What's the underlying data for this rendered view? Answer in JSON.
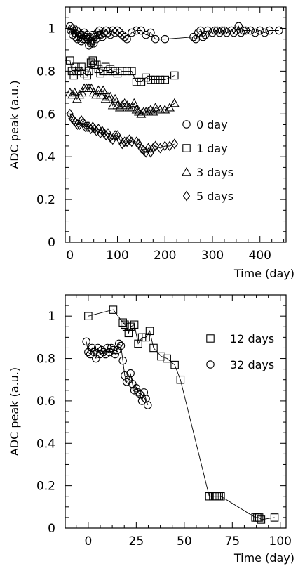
{
  "chart_data": [
    {
      "type": "scatter",
      "title": "",
      "xlabel": "Time  (day)",
      "ylabel": "ADC peak (a.u.)",
      "xlim": [
        -10,
        455
      ],
      "ylim": [
        0,
        1.1
      ],
      "xticks": [
        0,
        100,
        200,
        300,
        400
      ],
      "yticks": [
        0,
        0.2,
        0.4,
        0.6,
        0.8,
        1
      ],
      "ytick_labels": [
        "0",
        "0.2",
        "0.4",
        "0.6",
        "0.8",
        "1"
      ],
      "grid": false,
      "legend_position": "right-middle",
      "series": [
        {
          "name": "0 day",
          "marker": "circle",
          "connected": true,
          "x": [
            0,
            2,
            4,
            6,
            8,
            10,
            12,
            14,
            16,
            18,
            20,
            22,
            24,
            26,
            28,
            30,
            32,
            34,
            36,
            38,
            40,
            42,
            44,
            46,
            48,
            50,
            52,
            55,
            58,
            60,
            62,
            65,
            68,
            72,
            76,
            80,
            85,
            90,
            95,
            100,
            105,
            110,
            115,
            120,
            130,
            140,
            150,
            160,
            170,
            180,
            200,
            260,
            265,
            270,
            275,
            280,
            285,
            290,
            300,
            305,
            310,
            315,
            320,
            325,
            330,
            340,
            345,
            350,
            355,
            360,
            365,
            370,
            380,
            390,
            400,
            410,
            420,
            440
          ],
          "y": [
            1.01,
            0.99,
            1.0,
            0.97,
            1.0,
            0.98,
            0.96,
            0.99,
            0.95,
            0.98,
            0.96,
            0.97,
            0.94,
            0.97,
            0.95,
            0.98,
            0.95,
            0.96,
            0.97,
            0.95,
            0.92,
            0.96,
            0.93,
            0.94,
            0.97,
            0.93,
            0.96,
            0.95,
            0.98,
            0.97,
            0.99,
            0.97,
            0.96,
            0.98,
            0.99,
            0.98,
            0.97,
            0.99,
            0.98,
            0.99,
            0.98,
            0.97,
            0.96,
            0.95,
            0.98,
            0.99,
            0.99,
            0.97,
            0.98,
            0.95,
            0.95,
            0.96,
            0.95,
            0.98,
            0.99,
            0.96,
            0.97,
            0.99,
            0.98,
            0.99,
            0.99,
            0.98,
            0.99,
            0.99,
            0.98,
            0.99,
            0.98,
            0.99,
            1.01,
            0.98,
            0.99,
            0.99,
            0.99,
            0.98,
            0.99,
            0.98,
            0.99,
            0.99
          ]
        },
        {
          "name": "1 day",
          "marker": "square",
          "connected": true,
          "x": [
            0,
            4,
            8,
            12,
            16,
            20,
            24,
            30,
            36,
            40,
            44,
            48,
            52,
            56,
            60,
            64,
            70,
            75,
            80,
            85,
            90,
            95,
            100,
            110,
            120,
            130,
            140,
            150,
            160,
            170,
            180,
            190,
            200,
            220
          ],
          "y": [
            0.85,
            0.8,
            0.78,
            0.82,
            0.8,
            0.8,
            0.82,
            0.79,
            0.78,
            0.8,
            0.84,
            0.85,
            0.83,
            0.83,
            0.81,
            0.79,
            0.8,
            0.82,
            0.8,
            0.81,
            0.8,
            0.8,
            0.79,
            0.8,
            0.8,
            0.8,
            0.75,
            0.75,
            0.77,
            0.76,
            0.76,
            0.76,
            0.76,
            0.78
          ]
        },
        {
          "name": "3 days",
          "marker": "triangle",
          "connected": true,
          "x": [
            0,
            5,
            10,
            15,
            20,
            25,
            30,
            35,
            40,
            45,
            50,
            55,
            60,
            65,
            70,
            75,
            80,
            85,
            90,
            95,
            100,
            105,
            110,
            115,
            120,
            125,
            130,
            135,
            140,
            145,
            150,
            155,
            160,
            165,
            170,
            175,
            180,
            190,
            200,
            210,
            220
          ],
          "y": [
            0.7,
            0.69,
            0.7,
            0.67,
            0.69,
            0.7,
            0.72,
            0.72,
            0.72,
            0.72,
            0.7,
            0.69,
            0.71,
            0.69,
            0.71,
            0.67,
            0.68,
            0.68,
            0.64,
            0.67,
            0.64,
            0.63,
            0.64,
            0.65,
            0.64,
            0.63,
            0.63,
            0.65,
            0.62,
            0.61,
            0.6,
            0.61,
            0.61,
            0.61,
            0.62,
            0.61,
            0.63,
            0.62,
            0.62,
            0.63,
            0.65
          ]
        },
        {
          "name": "5 days",
          "marker": "diamond",
          "connected": true,
          "x": [
            0,
            4,
            8,
            12,
            16,
            20,
            24,
            28,
            32,
            36,
            40,
            44,
            48,
            52,
            56,
            60,
            64,
            68,
            72,
            76,
            80,
            85,
            90,
            95,
            100,
            105,
            110,
            115,
            120,
            125,
            130,
            140,
            145,
            150,
            155,
            160,
            165,
            170,
            175,
            180,
            190,
            200,
            210,
            220
          ],
          "y": [
            0.6,
            0.58,
            0.57,
            0.56,
            0.55,
            0.55,
            0.57,
            0.56,
            0.54,
            0.54,
            0.54,
            0.53,
            0.54,
            0.53,
            0.52,
            0.53,
            0.51,
            0.52,
            0.51,
            0.5,
            0.51,
            0.49,
            0.48,
            0.5,
            0.5,
            0.48,
            0.46,
            0.47,
            0.47,
            0.48,
            0.47,
            0.47,
            0.46,
            0.44,
            0.43,
            0.42,
            0.44,
            0.42,
            0.44,
            0.45,
            0.44,
            0.45,
            0.45,
            0.46
          ]
        }
      ]
    },
    {
      "type": "scatter",
      "title": "",
      "xlabel": "Time  (day)",
      "ylabel": "ADC peak (a.u.)",
      "xlim": [
        -12,
        103
      ],
      "ylim": [
        0,
        1.1
      ],
      "xticks": [
        0,
        25,
        50,
        75,
        100
      ],
      "yticks": [
        0,
        0.2,
        0.4,
        0.6,
        0.8,
        1
      ],
      "ytick_labels": [
        "0",
        "0.2",
        "0.4",
        "0.6",
        "0.8",
        "1"
      ],
      "grid": false,
      "legend_position": "top-right",
      "series": [
        {
          "name": "12 days",
          "marker": "square",
          "connected": true,
          "x": [
            0,
            13,
            18,
            19,
            20,
            21,
            22,
            24,
            26,
            28,
            30,
            32,
            34,
            38,
            41,
            45,
            48,
            63,
            65,
            66,
            67,
            68,
            69,
            87,
            88,
            89,
            90,
            97
          ],
          "y": [
            1.0,
            1.03,
            0.97,
            0.96,
            0.95,
            0.92,
            0.95,
            0.96,
            0.87,
            0.9,
            0.9,
            0.93,
            0.85,
            0.81,
            0.8,
            0.77,
            0.7,
            0.15,
            0.15,
            0.15,
            0.15,
            0.15,
            0.15,
            0.05,
            0.05,
            0.05,
            0.04,
            0.05
          ]
        },
        {
          "name": "32 days",
          "marker": "circle",
          "connected": true,
          "x": [
            -1,
            0,
            1,
            2,
            3,
            4,
            5,
            6,
            7,
            8,
            9,
            10,
            11,
            12,
            13,
            14,
            15,
            16,
            17,
            18,
            19,
            20,
            21,
            22,
            23,
            24,
            25,
            26,
            27,
            28,
            29,
            30,
            31
          ],
          "y": [
            0.88,
            0.83,
            0.82,
            0.85,
            0.83,
            0.8,
            0.85,
            0.82,
            0.84,
            0.83,
            0.82,
            0.85,
            0.83,
            0.85,
            0.84,
            0.82,
            0.84,
            0.87,
            0.86,
            0.79,
            0.72,
            0.69,
            0.7,
            0.73,
            0.68,
            0.65,
            0.66,
            0.64,
            0.63,
            0.6,
            0.64,
            0.61,
            0.58
          ]
        }
      ]
    }
  ]
}
